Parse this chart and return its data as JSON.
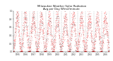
{
  "title": "Milwaukee Weather Solar Radiation",
  "subtitle": "Avg per Day W/m2/minute",
  "background_color": "#ffffff",
  "dot_color_red": "#ff0000",
  "dot_color_black": "#000000",
  "dot_color_dark": "#330000",
  "grid_color": "#aaaaaa",
  "ylim": [
    0,
    1.0
  ],
  "num_years": 12,
  "title_fontsize": 2.8,
  "tick_fontsize": 2.0,
  "y_ticks": [
    0.0,
    0.2,
    0.4,
    0.6,
    0.8,
    1.0
  ],
  "y_tick_labels": [
    "0.0",
    "0.2",
    "0.4",
    "0.6",
    "0.8",
    "1.0"
  ],
  "start_year": 1995,
  "seed": 42
}
